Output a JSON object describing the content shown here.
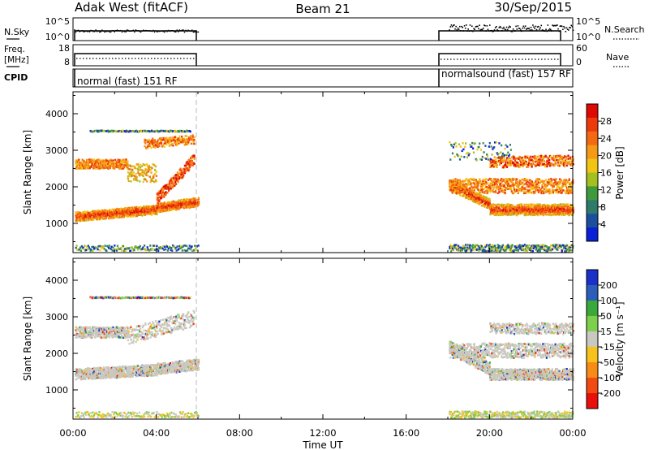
{
  "header": {
    "station": "Adak West (fitACF)",
    "beam": "Beam 21",
    "date": "30/Sep/2015"
  },
  "strips": {
    "nsky_label": "N.Sky",
    "nsearch_label": "N.Search",
    "noise_ticks_left": [
      "10^5",
      "10^0"
    ],
    "noise_ticks_right": [
      "10^5",
      "10^0"
    ],
    "freq_label_1": "Freq.",
    "freq_label_2": "[MHz]",
    "freq_ticks": [
      "18",
      "8"
    ],
    "nave_label": "Nave",
    "nave_ticks": [
      "60",
      "0"
    ],
    "cpid_label": "CPID",
    "cpid_segments": [
      "normal (fast) 151 RF",
      "normalsound (fast) 157 RF"
    ]
  },
  "colors": {
    "power": [
      "#0a1fd6",
      "#1b4f9e",
      "#2f7a6a",
      "#3f9a3c",
      "#a4c020",
      "#f2c414",
      "#f59a16",
      "#f46a12",
      "#ec3a0c",
      "#de0a02"
    ],
    "velocity": [
      "#e81008",
      "#f24a10",
      "#f68c16",
      "#f8c21c",
      "#c9c8c1",
      "#7ed04c",
      "#3aa83a",
      "#2a5eb8",
      "#1a30c8"
    ]
  },
  "chart_data": [
    {
      "type": "heatmap",
      "title": "Power",
      "ylabel": "Slant Range [km]",
      "ylim": [
        200,
        4600
      ],
      "x_ticks": [
        "00:00",
        "04:00",
        "08:00",
        "12:00",
        "16:00",
        "20:00",
        "00:00"
      ],
      "y_ticks": [
        1000,
        2000,
        3000,
        4000
      ],
      "colorbar": {
        "label": "Power [dB]",
        "ticks": [
          4,
          8,
          12,
          16,
          20,
          24,
          28
        ]
      }
    },
    {
      "type": "heatmap",
      "title": "Velocity",
      "ylabel": "Slant Range [km]",
      "xlabel": "Time UT",
      "ylim": [
        200,
        4600
      ],
      "x_ticks": [
        "00:00",
        "04:00",
        "08:00",
        "12:00",
        "16:00",
        "20:00",
        "00:00"
      ],
      "y_ticks": [
        1000,
        2000,
        3000,
        4000
      ],
      "colorbar": {
        "label": "Velocity [m s⁻¹]",
        "ticks": [
          200,
          100,
          50,
          15,
          -15,
          -50,
          -100,
          -200
        ]
      }
    }
  ]
}
